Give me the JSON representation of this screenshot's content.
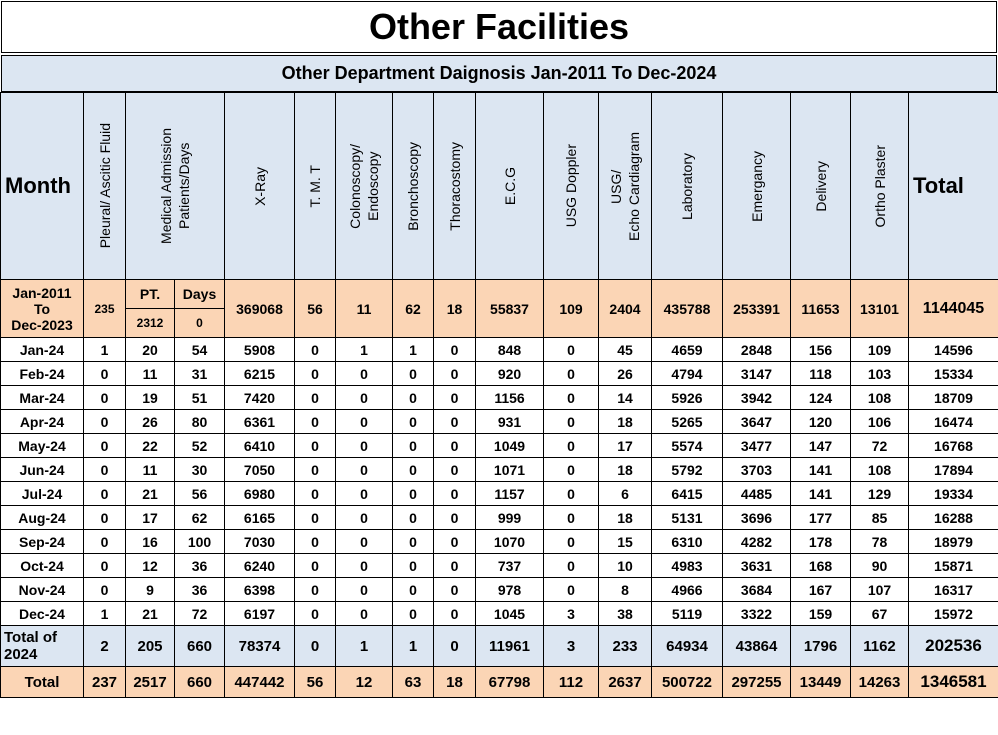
{
  "title": "Other Facilities",
  "subtitle": "Other Department Daignosis Jan-2011 To Dec-2024",
  "headers": {
    "month": "Month",
    "pleural": "Pleural/ Ascitic Fluid",
    "medical_line1": "Medical Admission",
    "medical_line2": "Patients/Days",
    "xray": "X-Ray",
    "tmt": "T. M. T",
    "colono_line1": "Colonoscopy/",
    "colono_line2": "Endoscopy",
    "broncho": "Bronchoscopy",
    "thoraco": "Thoracostomy",
    "ecg": "E.C.G",
    "usg_doppler": "USG Doppler",
    "usg_echo_line1": "USG/",
    "usg_echo_line2": "Echo Cardiagram",
    "lab": "Laboratory",
    "emergency": "Emergancy",
    "delivery": "Delivery",
    "ortho": "Ortho Plaster",
    "total": "Total"
  },
  "previous": {
    "label_line1": "Jan-2011",
    "label_line2": "To",
    "label_line3": "Dec-2023",
    "pleural": "235",
    "pt_label": "PT.",
    "days_label": "Days",
    "pt": "2312",
    "days": "0",
    "xray": "369068",
    "tmt": "56",
    "colono": "11",
    "broncho": "62",
    "thoraco": "18",
    "ecg": "55837",
    "usg_doppler": "109",
    "usg_echo": "2404",
    "lab": "435788",
    "emergency": "253391",
    "delivery": "11653",
    "ortho": "13101",
    "total": "1144045"
  },
  "rows": [
    [
      "Jan-24",
      "1",
      "20",
      "54",
      "5908",
      "0",
      "1",
      "1",
      "0",
      "848",
      "0",
      "45",
      "4659",
      "2848",
      "156",
      "109",
      "14596"
    ],
    [
      "Feb-24",
      "0",
      "11",
      "31",
      "6215",
      "0",
      "0",
      "0",
      "0",
      "920",
      "0",
      "26",
      "4794",
      "3147",
      "118",
      "103",
      "15334"
    ],
    [
      "Mar-24",
      "0",
      "19",
      "51",
      "7420",
      "0",
      "0",
      "0",
      "0",
      "1156",
      "0",
      "14",
      "5926",
      "3942",
      "124",
      "108",
      "18709"
    ],
    [
      "Apr-24",
      "0",
      "26",
      "80",
      "6361",
      "0",
      "0",
      "0",
      "0",
      "931",
      "0",
      "18",
      "5265",
      "3647",
      "120",
      "106",
      "16474"
    ],
    [
      "May-24",
      "0",
      "22",
      "52",
      "6410",
      "0",
      "0",
      "0",
      "0",
      "1049",
      "0",
      "17",
      "5574",
      "3477",
      "147",
      "72",
      "16768"
    ],
    [
      "Jun-24",
      "0",
      "11",
      "30",
      "7050",
      "0",
      "0",
      "0",
      "0",
      "1071",
      "0",
      "18",
      "5792",
      "3703",
      "141",
      "108",
      "17894"
    ],
    [
      "Jul-24",
      "0",
      "21",
      "56",
      "6980",
      "0",
      "0",
      "0",
      "0",
      "1157",
      "0",
      "6",
      "6415",
      "4485",
      "141",
      "129",
      "19334"
    ],
    [
      "Aug-24",
      "0",
      "17",
      "62",
      "6165",
      "0",
      "0",
      "0",
      "0",
      "999",
      "0",
      "18",
      "5131",
      "3696",
      "177",
      "85",
      "16288"
    ],
    [
      "Sep-24",
      "0",
      "16",
      "100",
      "7030",
      "0",
      "0",
      "0",
      "0",
      "1070",
      "0",
      "15",
      "6310",
      "4282",
      "178",
      "78",
      "18979"
    ],
    [
      "Oct-24",
      "0",
      "12",
      "36",
      "6240",
      "0",
      "0",
      "0",
      "0",
      "737",
      "0",
      "10",
      "4983",
      "3631",
      "168",
      "90",
      "15871"
    ],
    [
      "Nov-24",
      "0",
      "9",
      "36",
      "6398",
      "0",
      "0",
      "0",
      "0",
      "978",
      "0",
      "8",
      "4966",
      "3684",
      "167",
      "107",
      "16317"
    ],
    [
      "Dec-24",
      "1",
      "21",
      "72",
      "6197",
      "0",
      "0",
      "0",
      "0",
      "1045",
      "3",
      "38",
      "5119",
      "3322",
      "159",
      "67",
      "15972"
    ]
  ],
  "total_2024": {
    "label_line1": "Total of",
    "label_line2": "2024",
    "values": [
      "2",
      "205",
      "660",
      "78374",
      "0",
      "1",
      "1",
      "0",
      "11961",
      "3",
      "233",
      "64934",
      "43864",
      "1796",
      "1162",
      "202536"
    ]
  },
  "grand_total": {
    "label": "Total",
    "values": [
      "237",
      "2517",
      "660",
      "447442",
      "56",
      "12",
      "63",
      "18",
      "67798",
      "112",
      "2637",
      "500722",
      "297255",
      "13449",
      "14263",
      "1346581"
    ]
  }
}
